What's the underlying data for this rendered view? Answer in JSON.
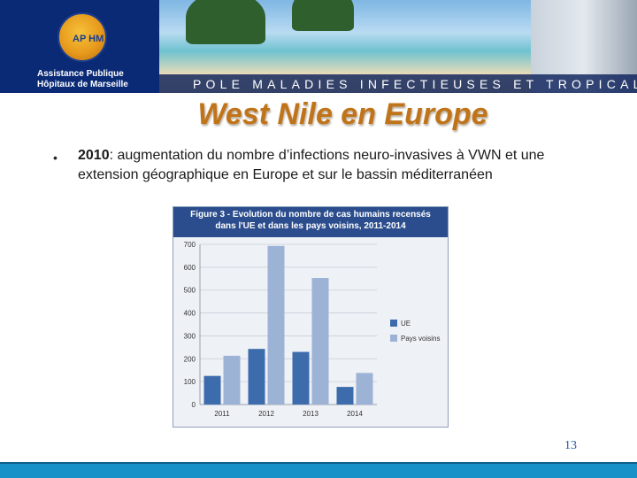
{
  "header": {
    "org_line1": "Assistance Publique",
    "org_line2": "Hôpitaux de Marseille",
    "logo_text": "AP HM",
    "banner_title": "POLE MALADIES INFECTIEUSES ET TROPICALES"
  },
  "slide": {
    "title": "West Nile en Europe",
    "bullet_symbol": "•",
    "bullet_bold": "2010",
    "bullet_rest": ": augmentation du nombre d’infections neuro-invasives à VWN et une extension géographique en Europe et sur le bassin méditerranéen",
    "page_number": "13"
  },
  "chart_data": {
    "type": "bar",
    "title": "Figure 3 - Evolution du nombre de cas humains recensés",
    "subtitle": "dans l'UE et dans les pays voisins, 2011-2014",
    "categories": [
      "2011",
      "2012",
      "2013",
      "2014"
    ],
    "series": [
      {
        "name": "UE",
        "color": "#3d6cad",
        "values": [
          125,
          243,
          230,
          77
        ]
      },
      {
        "name": "Pays voisins",
        "color": "#9db3d6",
        "values": [
          213,
          693,
          553,
          138
        ]
      }
    ],
    "ylim": [
      0,
      700
    ],
    "yticks": [
      "0",
      "100",
      "200",
      "300",
      "400",
      "500",
      "600",
      "700"
    ],
    "xlabel": "",
    "ylabel": "",
    "legend": "right"
  }
}
